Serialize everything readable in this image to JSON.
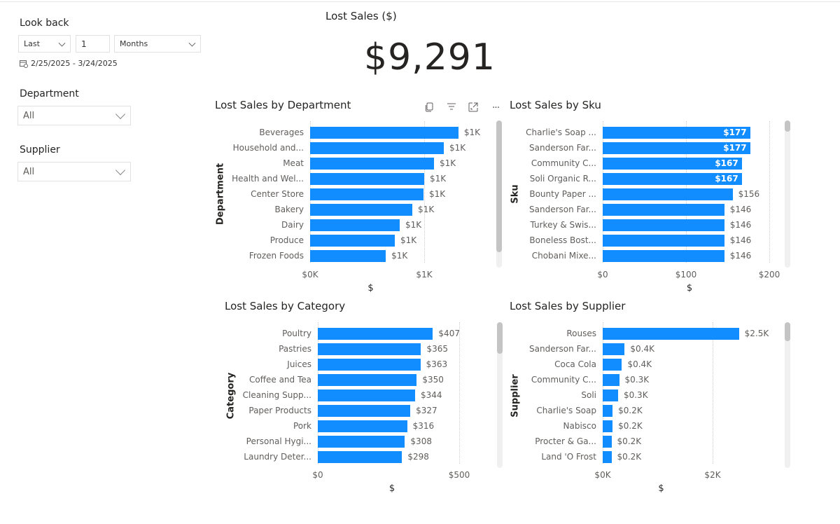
{
  "filters": {
    "lookback": {
      "label": "Look back",
      "mode": "Last",
      "count": "1",
      "unit": "Months",
      "date_range": "2/25/2025 - 3/24/2025"
    },
    "department": {
      "label": "Department",
      "value": "All"
    },
    "supplier": {
      "label": "Supplier",
      "value": "All"
    }
  },
  "kpi": {
    "title": "Lost Sales ($)",
    "value": "$9,291"
  },
  "visual_header_icons": [
    "copy-icon",
    "filter-icon",
    "focus-mode-icon",
    "more-options-icon"
  ],
  "accent_color": "#118dff",
  "chart_data": [
    {
      "id": "department",
      "type": "bar",
      "orientation": "horizontal",
      "title": "Lost Sales by Department",
      "xlabel": "$",
      "ylabel": "Department",
      "categories": [
        "Beverages",
        "Household and...",
        "Meat",
        "Health and Wel...",
        "Center Store",
        "Bakery",
        "Dairy",
        "Produce",
        "Frozen Foods"
      ],
      "values": [
        1300,
        1172,
        1086,
        1000,
        994,
        896,
        785,
        742,
        663
      ],
      "data_labels": [
        "$1K",
        "$1K",
        "$1K",
        "$1K",
        "$1K",
        "$1K",
        "$1K",
        "$1K",
        "$1K"
      ],
      "x_ticks": [
        {
          "value": 0,
          "label": "$0K"
        },
        {
          "value": 1000,
          "label": "$1K"
        }
      ],
      "xlim": [
        0,
        1300
      ],
      "grid": true
    },
    {
      "id": "sku",
      "type": "bar",
      "orientation": "horizontal",
      "title": "Lost Sales by Sku",
      "xlabel": "$",
      "ylabel": "Sku",
      "categories": [
        "Charlie's Soap ...",
        "Sanderson Far...",
        "Community C...",
        "Soli Organic R...",
        "Bounty Paper ...",
        "Sanderson Far...",
        "Turkey & Swis...",
        "Boneless Bost...",
        "Chobani Mixe..."
      ],
      "values": [
        177,
        177,
        167,
        167,
        156,
        146,
        146,
        146,
        146
      ],
      "data_labels": [
        "$177",
        "$177",
        "$167",
        "$167",
        "$156",
        "$146",
        "$146",
        "$146",
        "$146"
      ],
      "x_ticks": [
        {
          "value": 0,
          "label": "$0"
        },
        {
          "value": 100,
          "label": "$100"
        },
        {
          "value": 200,
          "label": "$200"
        }
      ],
      "xlim": [
        0,
        200
      ],
      "grid": true
    },
    {
      "id": "category",
      "type": "bar",
      "orientation": "horizontal",
      "title": "Lost Sales by Category",
      "xlabel": "$",
      "ylabel": "Category",
      "categories": [
        "Poultry",
        "Pastries",
        "Juices",
        "Coffee and Tea",
        "Cleaning Supp...",
        "Paper Products",
        "Pork",
        "Personal Hygi...",
        "Laundry Deter..."
      ],
      "values": [
        407,
        365,
        363,
        350,
        344,
        327,
        316,
        308,
        298
      ],
      "data_labels": [
        "$407",
        "$365",
        "$363",
        "$350",
        "$344",
        "$327",
        "$316",
        "$308",
        "$298"
      ],
      "x_ticks": [
        {
          "value": 0,
          "label": "$0"
        },
        {
          "value": 500,
          "label": "$500"
        }
      ],
      "xlim": [
        0,
        500
      ],
      "grid": true
    },
    {
      "id": "supplier",
      "type": "bar",
      "orientation": "horizontal",
      "title": "Lost Sales by Supplier",
      "xlabel": "$",
      "ylabel": "Supplier",
      "categories": [
        "Rouses",
        "Sanderson Far...",
        "Coca Cola",
        "Community C...",
        "Soli",
        "Charlie's Soap",
        "Nabisco",
        "Procter & Ga...",
        "Land 'O Frost"
      ],
      "values": [
        2480,
        400,
        350,
        300,
        280,
        180,
        180,
        160,
        160
      ],
      "data_labels": [
        "$2.5K",
        "$0.4K",
        "$0.4K",
        "$0.3K",
        "$0.3K",
        "$0.2K",
        "$0.2K",
        "$0.2K",
        "$0.2K"
      ],
      "x_ticks": [
        {
          "value": 0,
          "label": "$0K"
        },
        {
          "value": 2000,
          "label": "$2K"
        }
      ],
      "xlim": [
        0,
        2500
      ],
      "grid": true
    }
  ]
}
